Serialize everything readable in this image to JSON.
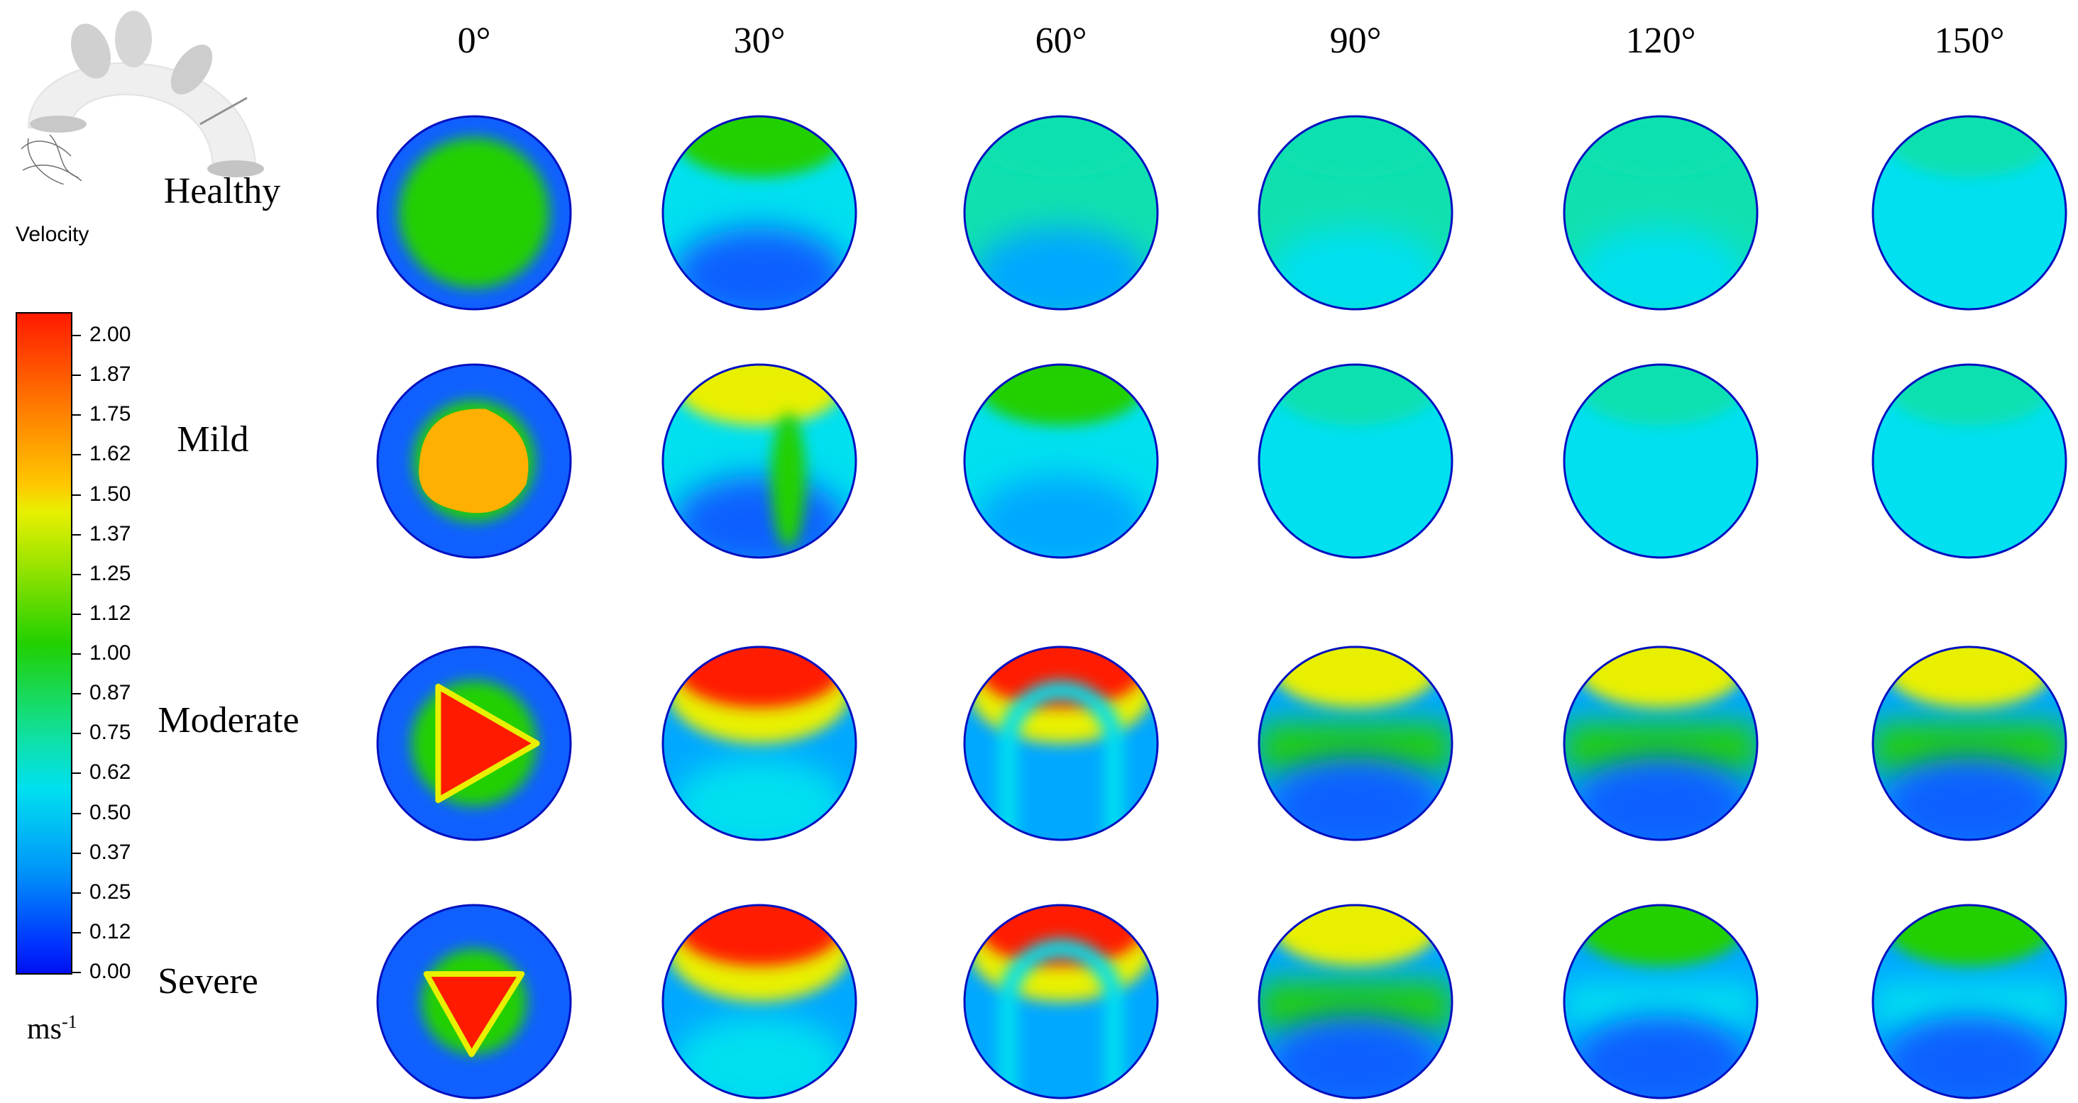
{
  "legend": {
    "title": "Velocity",
    "unit_base": "ms",
    "unit_exp": "-1",
    "ticks": [
      "2.00",
      "1.87",
      "1.75",
      "1.62",
      "1.50",
      "1.37",
      "1.25",
      "1.12",
      "1.00",
      "0.87",
      "0.75",
      "0.62",
      "0.50",
      "0.37",
      "0.25",
      "0.12",
      "0.00"
    ]
  },
  "columns": [
    "0°",
    "30°",
    "60°",
    "90°",
    "120°",
    "150°"
  ],
  "rows": [
    "Healthy",
    "Mild",
    "Moderate",
    "Severe"
  ],
  "colors": {
    "red": "#ff1a00",
    "orange": "#ffb000",
    "yellow": "#e8f000",
    "green": "#22d000",
    "teal": "#10e0b0",
    "cyan": "#00e0f0",
    "light_blue": "#00a8ff",
    "blue": "#1060ff",
    "deep_blue": "#0020e8"
  },
  "icons": {
    "arch": "aortic-arch-icon"
  }
}
